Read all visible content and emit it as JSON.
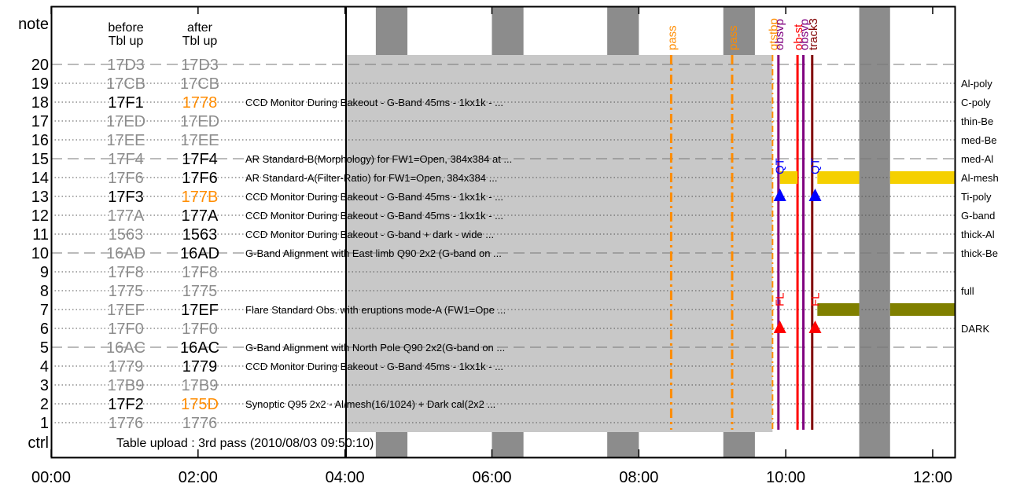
{
  "chart_data": {
    "type": "timeline",
    "title": "",
    "x_ticks": [
      "00:00",
      "02:00",
      "04:00",
      "06:00",
      "08:00",
      "10:00",
      "12:00"
    ],
    "xlim_hours": [
      0,
      12.3
    ],
    "y_axis_label_top": "note",
    "y_axis_label_bottom": "ctrl",
    "header": {
      "before": [
        "before",
        "Tbl up"
      ],
      "after": [
        "after",
        "Tbl up"
      ]
    },
    "colors": {
      "shade": "#c8c8c8",
      "band": "#8c8c8c",
      "orange": "#ff8c00",
      "gray_text": "#8c8c8c",
      "olive": "#808000",
      "yellow": "#f5d000",
      "green": "#007f00",
      "blue": "#0000ff",
      "red": "#ff0000",
      "darkred": "#800000",
      "purple": "#800080"
    },
    "rows": [
      {
        "num": 20,
        "before": "17D3",
        "after": "17D3",
        "before_style": "gray",
        "after_style": "gray",
        "desc": "",
        "right": ""
      },
      {
        "num": 19,
        "before": "17CB",
        "after": "17CB",
        "before_style": "gray",
        "after_style": "gray",
        "desc": "",
        "right": "Al-poly"
      },
      {
        "num": 18,
        "before": "17F1",
        "after": "1778",
        "before_style": "black",
        "after_style": "orange",
        "desc": "CCD Monitor During Bakeout - G-Band 45ms - 1kx1k - ...",
        "right": "C-poly"
      },
      {
        "num": 17,
        "before": "17ED",
        "after": "17ED",
        "before_style": "gray",
        "after_style": "gray",
        "desc": "",
        "right": "thin-Be"
      },
      {
        "num": 16,
        "before": "17EE",
        "after": "17EE",
        "before_style": "gray",
        "after_style": "gray",
        "desc": "",
        "right": "med-Be"
      },
      {
        "num": 15,
        "before": "17F4",
        "after": "17F4",
        "before_style": "gray",
        "after_style": "black",
        "desc": "AR Standard-B(Morphology) for FW1=Open, 384x384 at ...",
        "right": "med-Al"
      },
      {
        "num": 14,
        "before": "17F6",
        "after": "17F6",
        "before_style": "gray",
        "after_style": "black",
        "desc": "AR Standard-A(Filter-Ratio) for FW1=Open, 384x384  ...",
        "right": "Al-mesh"
      },
      {
        "num": 13,
        "before": "17F3",
        "after": "177B",
        "before_style": "black",
        "after_style": "orange",
        "desc": "CCD Monitor During Bakeout - G-Band 45ms - 1kx1k - ...",
        "right": "Ti-poly"
      },
      {
        "num": 12,
        "before": "177A",
        "after": "177A",
        "before_style": "gray",
        "after_style": "black",
        "desc": "CCD Monitor During Bakeout - G-Band 45ms - 1kx1k - ...",
        "right": "G-band"
      },
      {
        "num": 11,
        "before": "1563",
        "after": "1563",
        "before_style": "gray",
        "after_style": "black",
        "desc": "CCD Monitor During Bakeout - G-band + dark - wide  ...",
        "right": "thick-Al"
      },
      {
        "num": 10,
        "before": "16AD",
        "after": "16AD",
        "before_style": "gray",
        "after_style": "black",
        "desc": "G-Band Alignment with East limb Q90 2x2 (G-band on ...",
        "right": "thick-Be"
      },
      {
        "num": 9,
        "before": "17F8",
        "after": "17F8",
        "before_style": "gray",
        "after_style": "gray",
        "desc": "",
        "right": ""
      },
      {
        "num": 8,
        "before": "1775",
        "after": "1775",
        "before_style": "gray",
        "after_style": "gray",
        "desc": "",
        "right": "full"
      },
      {
        "num": 7,
        "before": "17EF",
        "after": "17EF",
        "before_style": "gray",
        "after_style": "black",
        "desc": "Flare Standard Obs. with eruptions mode-A (FW1=Ope ...",
        "right": ""
      },
      {
        "num": 6,
        "before": "17F0",
        "after": "17F0",
        "before_style": "gray",
        "after_style": "gray",
        "desc": "",
        "right": "DARK"
      },
      {
        "num": 5,
        "before": "16AC",
        "after": "16AC",
        "before_style": "gray",
        "after_style": "black",
        "desc": "G-Band Alignment with North Pole Q90 2x2(G-band on ...",
        "right": ""
      },
      {
        "num": 4,
        "before": "1779",
        "after": "1779",
        "before_style": "gray",
        "after_style": "black",
        "desc": "CCD Monitor During Bakeout - G-Band 45ms - 1kx1k - ...",
        "right": ""
      },
      {
        "num": 3,
        "before": "17B9",
        "after": "17B9",
        "before_style": "gray",
        "after_style": "gray",
        "desc": "",
        "right": ""
      },
      {
        "num": 2,
        "before": "17F2",
        "after": "175D",
        "before_style": "black",
        "after_style": "orange",
        "desc": "Synoptic Q95 2x2 - Al/mesh(16/1024) + Dark cal(2x2 ...",
        "right": ""
      },
      {
        "num": 1,
        "before": "1776",
        "after": "1776",
        "before_style": "gray",
        "after_style": "gray",
        "desc": "",
        "right": ""
      }
    ],
    "ctrl_text": "Table upload : 3rd pass (2010/08/03 09:50:10)",
    "dark_bands_hours": [
      [
        4.42,
        4.85
      ],
      [
        6.0,
        6.43
      ],
      [
        7.57,
        8.0
      ],
      [
        9.15,
        9.58
      ],
      [
        11.0,
        11.42
      ]
    ],
    "shaded_period_hours": [
      4.0,
      9.82
    ],
    "pass_markers": [
      {
        "label": "pass",
        "hour": 8.44,
        "color": "orange"
      },
      {
        "label": "pass",
        "hour": 9.27,
        "color": "orange"
      }
    ],
    "top_labels": [
      {
        "label": "gtstbp",
        "hour": 9.82,
        "color": "orange"
      },
      {
        "label": "obsvp",
        "hour": 9.9,
        "color": "purple"
      },
      {
        "label": "ob-st",
        "hour": 10.16,
        "color": "red"
      },
      {
        "label": "obsvp",
        "hour": 10.24,
        "color": "purple"
      },
      {
        "label": "track3",
        "hour": 10.36,
        "color": "darkred"
      }
    ],
    "event_markers": [
      {
        "label": "QT",
        "hour": 9.92,
        "row": 13,
        "color": "blue"
      },
      {
        "label": "QT",
        "hour": 10.4,
        "row": 13,
        "color": "blue"
      },
      {
        "label": "FL",
        "hour": 9.92,
        "row": 6,
        "color": "red"
      },
      {
        "label": "FL",
        "hour": 10.4,
        "row": 6,
        "color": "red"
      }
    ],
    "bars": [
      {
        "row": 14,
        "start": 9.92,
        "end": 10.16,
        "color": "yellow"
      },
      {
        "row": 14,
        "start": 10.43,
        "end": 11.0,
        "color": "yellow"
      },
      {
        "row": 14,
        "start": 11.42,
        "end": 12.3,
        "color": "yellow"
      },
      {
        "row": 7,
        "start": 10.43,
        "end": 11.0,
        "color": "olive"
      },
      {
        "row": 7,
        "start": 11.42,
        "end": 12.3,
        "color": "olive"
      }
    ]
  }
}
